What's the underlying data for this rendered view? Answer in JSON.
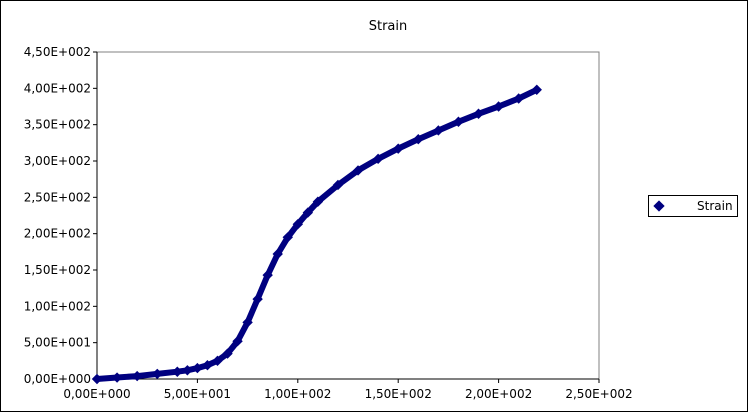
{
  "chart_data": {
    "type": "scatter",
    "title": "Strain",
    "xlabel": "",
    "ylabel": "",
    "xlim": [
      0,
      250
    ],
    "ylim": [
      0,
      450
    ],
    "x_ticks": [
      0,
      50,
      100,
      150,
      200,
      250
    ],
    "x_tick_labels": [
      "0,00E+000",
      "5,00E+001",
      "1,00E+002",
      "1,50E+002",
      "2,00E+002",
      "2,50E+002"
    ],
    "y_ticks": [
      0,
      50,
      100,
      150,
      200,
      250,
      300,
      350,
      400,
      450
    ],
    "y_tick_labels": [
      "0,00E+000",
      "5,00E+001",
      "1,00E+002",
      "1,50E+002",
      "2,00E+002",
      "2,50E+002",
      "3,00E+002",
      "3,50E+002",
      "4,00E+002",
      "4,50E+002"
    ],
    "grid": false,
    "legend_position": "right",
    "colors": {
      "series": "#000080",
      "plot_bg": "#ffffff",
      "axis": "#000000"
    },
    "series": [
      {
        "name": "Strain",
        "x": [
          0,
          10,
          20,
          30,
          40,
          45,
          50,
          55,
          60,
          65,
          70,
          75,
          80,
          85,
          90,
          95,
          100,
          105,
          110,
          120,
          130,
          140,
          150,
          160,
          170,
          180,
          190,
          200,
          210,
          219
        ],
        "y": [
          0,
          2,
          4,
          7,
          10,
          12,
          15,
          19,
          25,
          35,
          52,
          78,
          110,
          143,
          172,
          195,
          213,
          229,
          244,
          267,
          287,
          303,
          317,
          330,
          342,
          354,
          365,
          375,
          386,
          398
        ]
      }
    ]
  }
}
